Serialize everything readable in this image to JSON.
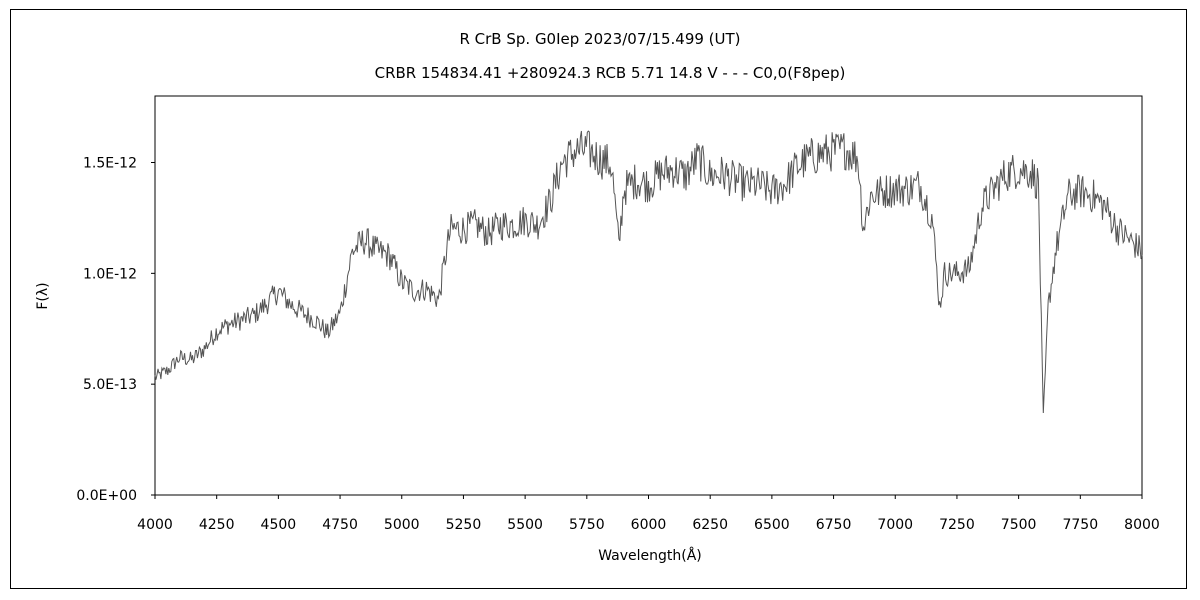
{
  "chart_data": {
    "type": "line",
    "title": "R CrB    Sp. G0Iep    2023/07/15.499 (UT)",
    "subtitle": "CRBR 154834.41 +280924.3 RCB 5.71 14.8 V - - - C0,0(F8pep)",
    "xlabel": "Wavelength(Å)",
    "ylabel": "F(λ)",
    "xlim": [
      4000,
      8000
    ],
    "ylim": [
      0,
      1.8e-12
    ],
    "x_ticks": [
      4000,
      4250,
      4500,
      4750,
      5000,
      5250,
      5500,
      5750,
      6000,
      6250,
      6500,
      6750,
      7000,
      7250,
      7500,
      7750,
      8000
    ],
    "x_tick_labels": [
      "4000",
      "4250",
      "4500",
      "4750",
      "5000",
      "5250",
      "5500",
      "5750",
      "6000",
      "6250",
      "6500",
      "6750",
      "7000",
      "7250",
      "7500",
      "7750",
      "8000"
    ],
    "y_ticks": [
      0,
      5e-13,
      1e-12,
      1.5e-12
    ],
    "y_tick_labels": [
      "0.0E+00",
      "5.0E-13",
      "1.0E-12",
      "1.5E-12"
    ],
    "grid": false,
    "series_color": "#555555",
    "series": [
      {
        "x": [
          4000,
          4050,
          4100,
          4150,
          4200,
          4250,
          4300,
          4350,
          4400,
          4450,
          4500,
          4550,
          4600,
          4650,
          4700,
          4750,
          4800,
          4850,
          4900,
          4950,
          5000,
          5050,
          5100,
          5150,
          5180,
          5200,
          5250,
          5300,
          5350,
          5400,
          5450,
          5500,
          5550,
          5600,
          5650,
          5700,
          5750,
          5800,
          5850,
          5880,
          5900,
          5950,
          6000,
          6050,
          6100,
          6150,
          6200,
          6250,
          6300,
          6350,
          6400,
          6450,
          6500,
          6550,
          6600,
          6650,
          6700,
          6750,
          6800,
          6850,
          6870,
          6900,
          6950,
          7000,
          7050,
          7100,
          7150,
          7180,
          7200,
          7250,
          7300,
          7350,
          7400,
          7450,
          7500,
          7550,
          7580,
          7600,
          7620,
          7650,
          7700,
          7750,
          7800,
          7850,
          7900,
          7950,
          8000
        ],
        "y": [
          5.3e-13,
          5.6e-13,
          6.2e-13,
          6.1e-13,
          6.6e-13,
          7.4e-13,
          7.7e-13,
          7.9e-13,
          8.1e-13,
          8.6e-13,
          9.2e-13,
          8.6e-13,
          8.2e-13,
          7.9e-13,
          7.3e-13,
          8.2e-13,
          1.1e-12,
          1.15e-12,
          1.1e-12,
          1.08e-12,
          9.6e-13,
          9.2e-13,
          9.3e-13,
          8.8e-13,
          1.1e-12,
          1.2e-12,
          1.2e-12,
          1.22e-12,
          1.18e-12,
          1.22e-12,
          1.22e-12,
          1.24e-12,
          1.22e-12,
          1.32e-12,
          1.5e-12,
          1.55e-12,
          1.56e-12,
          1.52e-12,
          1.49e-12,
          1.12e-12,
          1.38e-12,
          1.42e-12,
          1.4e-12,
          1.45e-12,
          1.47e-12,
          1.44e-12,
          1.52e-12,
          1.44e-12,
          1.45e-12,
          1.42e-12,
          1.4e-12,
          1.4e-12,
          1.37e-12,
          1.4e-12,
          1.48e-12,
          1.52e-12,
          1.54e-12,
          1.55e-12,
          1.56e-12,
          1.52e-12,
          1.2e-12,
          1.35e-12,
          1.37e-12,
          1.38e-12,
          1.38e-12,
          1.4e-12,
          1.25e-12,
          8.5e-13,
          1e-12,
          1e-12,
          1.02e-12,
          1.3e-12,
          1.38e-12,
          1.45e-12,
          1.47e-12,
          1.46e-12,
          1.4e-12,
          3.5e-13,
          8.5e-13,
          1.1e-12,
          1.35e-12,
          1.37e-12,
          1.35e-12,
          1.3e-12,
          1.2e-12,
          1.15e-12,
          1.1e-12
        ]
      }
    ]
  }
}
